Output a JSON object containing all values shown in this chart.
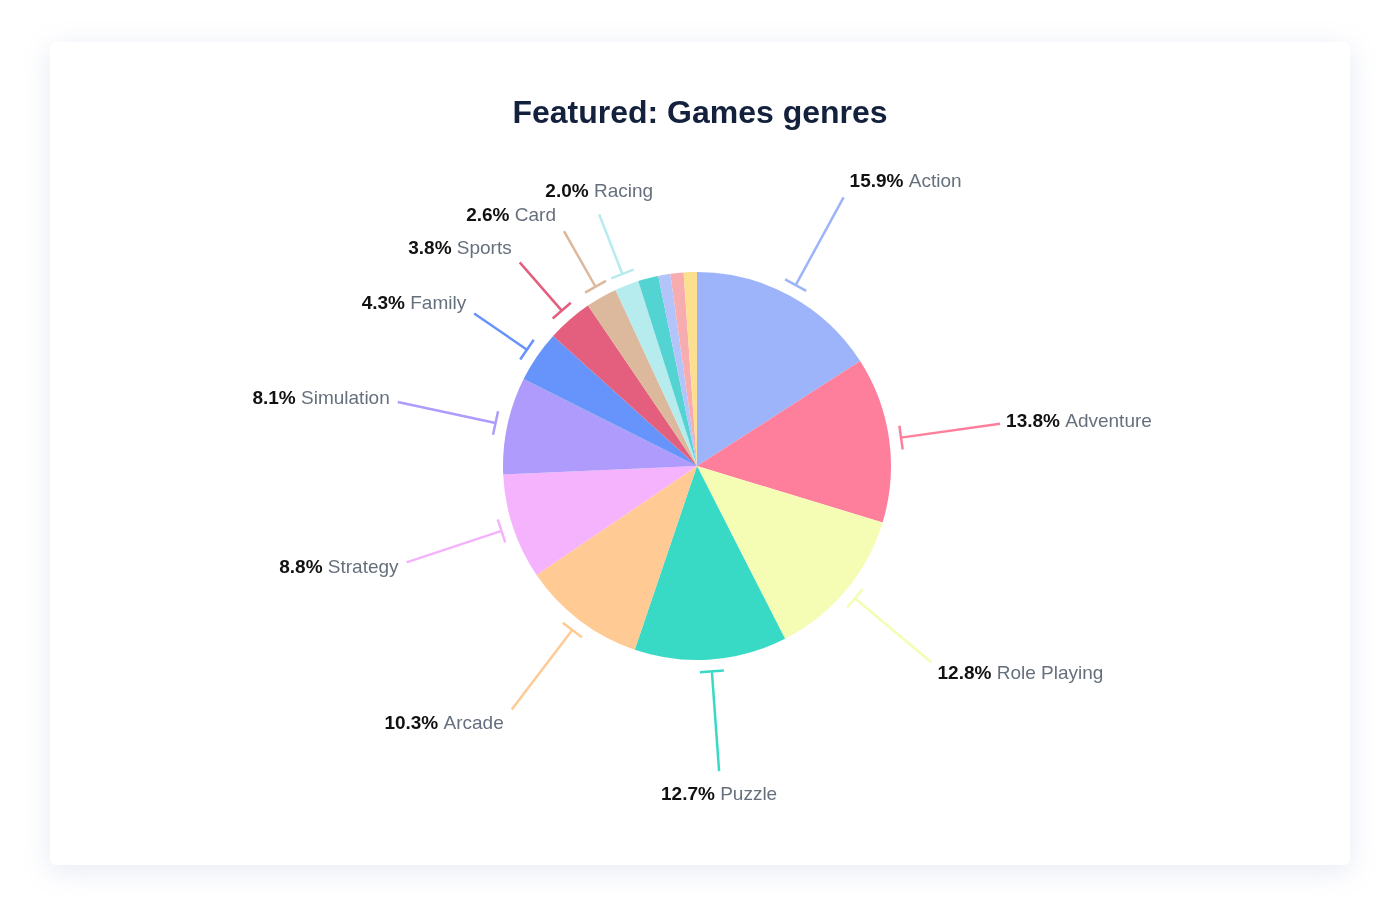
{
  "chart_data": {
    "type": "pie",
    "title": "Featured: Games genres",
    "categories": [
      "Action",
      "Adventure",
      "Role Playing",
      "Puzzle",
      "Arcade",
      "Strategy",
      "Simulation",
      "Family",
      "Sports",
      "Card",
      "Racing",
      null,
      null,
      null,
      null
    ],
    "values": [
      15.9,
      13.8,
      12.8,
      12.7,
      10.3,
      8.8,
      8.1,
      4.3,
      3.8,
      2.6,
      2.0,
      1.7,
      1.0,
      1.1,
      1.1
    ],
    "value_labels": [
      "15.9%",
      "13.8%",
      "12.8%",
      "12.7%",
      "10.3%",
      "8.8%",
      "8.1%",
      "4.3%",
      "3.8%",
      "2.6%",
      "2.0%",
      null,
      null,
      null,
      null
    ],
    "colors": [
      "#9db4fb",
      "#fe7f9c",
      "#f5fdb4",
      "#38dac6",
      "#ffca94",
      "#f5b2fd",
      "#ae9bfb",
      "#6694fb",
      "#e35f7d",
      "#dcb89c",
      "#b6ecee",
      "#53d3d1",
      "#b3c4fa",
      "#f7adb0",
      "#fde08f"
    ]
  }
}
